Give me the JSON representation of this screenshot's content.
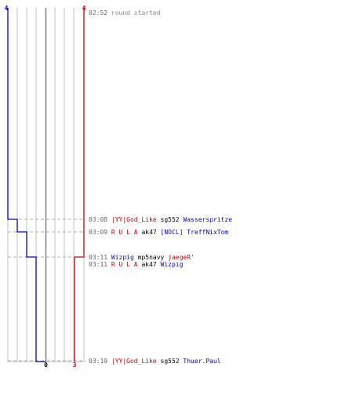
{
  "chart_data": {
    "type": "line",
    "title": "",
    "xlabel": "",
    "ylabel": "",
    "grid": true,
    "time_axis": {
      "start": "02:52",
      "end": "03:19"
    },
    "series": [
      {
        "color": "#0000cc",
        "start_count": 4,
        "end_count": 0,
        "steps": [
          {
            "time": "02:52",
            "count": 4
          },
          {
            "time": "03:08",
            "count": 3
          },
          {
            "time": "03:09",
            "count": 2
          },
          {
            "time": "03:11",
            "count": 1
          },
          {
            "time": "03:19",
            "count": 0
          }
        ]
      },
      {
        "color": "#cc0000",
        "start_count": 4,
        "end_count": 3,
        "steps": [
          {
            "time": "02:52",
            "count": 4
          },
          {
            "time": "03:11",
            "count": 3
          },
          {
            "time": "03:19",
            "count": 3
          }
        ]
      }
    ],
    "events": [
      {
        "time": "02:52",
        "dashed": false,
        "parts": [
          {
            "text": "round started",
            "color": "#888888"
          }
        ]
      },
      {
        "time": "03:08",
        "dashed": true,
        "parts": [
          {
            "text": "|YY|God_Like",
            "color": "#cc0000"
          },
          {
            "text": "sg552",
            "color": "#000000"
          },
          {
            "text": "Wasserspritze",
            "color": "#0000cc"
          }
        ]
      },
      {
        "time": "03:09",
        "dashed": true,
        "parts": [
          {
            "text": "R  U  L  A",
            "color": "#cc0000"
          },
          {
            "text": "ak47",
            "color": "#000000"
          },
          {
            "text": "[NOCL] TreffNixTom",
            "color": "#0000cc"
          }
        ]
      },
      {
        "time": "03:11",
        "dashed": true,
        "parts": [
          {
            "text": "Wizpig",
            "color": "#0000cc"
          },
          {
            "text": "mp5navy",
            "color": "#000000"
          },
          {
            "text": "jaegeR'",
            "color": "#cc0000"
          }
        ]
      },
      {
        "time": "03:11",
        "dashed": false,
        "parts": [
          {
            "text": "R  U  L  A",
            "color": "#cc0000"
          },
          {
            "text": "ak47",
            "color": "#000000"
          },
          {
            "text": "Wizpig",
            "color": "#0000cc"
          }
        ]
      },
      {
        "time": "03:19",
        "dashed": true,
        "parts": [
          {
            "text": "|YY|God_Like",
            "color": "#cc0000"
          },
          {
            "text": "sg552",
            "color": "#000000"
          },
          {
            "text": "Thuer.Paul",
            "color": "#0000cc"
          }
        ]
      }
    ],
    "colors": {
      "blue_team": "#0000cc",
      "red_team": "#cc0000",
      "time_label": "#666666",
      "grid_light": "#c0c0c0",
      "grid_center": "#808080",
      "dashed_line": "#b0b0b0",
      "weapon": "#000000"
    }
  }
}
